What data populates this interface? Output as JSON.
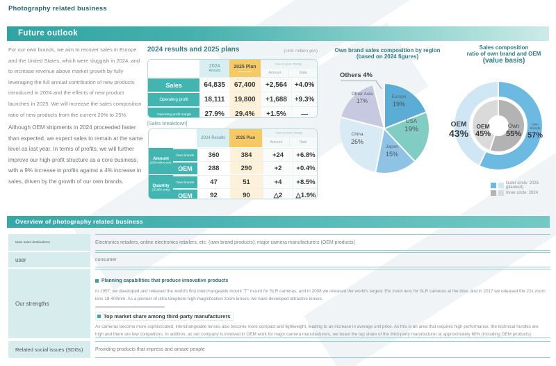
{
  "page_title": "Photography related business",
  "future_outlook": {
    "banner": "Future outlook",
    "para1": "For our own brands, we aim to recover sales in Europe and the United States, which were sluggish in 2024, and to increase revenue above market growth by fully leveraging the full annual contribution of new products introduced in 2024 and the effects of new product launches in 2025. We will increase the sales composition ratio of new products from the current 20% to 25%.",
    "para2": "Although OEM shipments in 2024 proceeded faster than expected, we expect sales to remain at the same level as last year. In terms of profits, we will further improve our high-profit structure as a core business, with a 9% increase in profits against a 4% increase in sales, driven by the growth of our own brands."
  },
  "results": {
    "title": "2024 results and 2025 plans",
    "unit_note": "(Unit: million yen)",
    "head": {
      "c2024": "2024",
      "c2024_sub": "Results",
      "c2025": "2025 Plan",
      "change": "Year-on-year change",
      "amount": "Amount",
      "rate": "Rate"
    },
    "rows": [
      {
        "label": "Sales",
        "v2024": "64,835",
        "v2025": "67,400",
        "amount": "+2,564",
        "rate": "+4.0%"
      },
      {
        "label": "Operating profit",
        "v2024": "18,111",
        "v2025": "19,800",
        "amount": "+1,688",
        "rate": "+9.3%"
      },
      {
        "label": "Operating profit margin",
        "v2024": "27.9%",
        "v2025": "29.4%",
        "amount": "+1.5%",
        "rate": "—"
      }
    ]
  },
  "breakdown": {
    "title": "[Sales breakdown]",
    "head": {
      "c2024": "2024 Results",
      "c2025": "2025 Plan",
      "change": "Year-on-year change",
      "amount": "Amount",
      "rate": "Rate"
    },
    "groups": [
      {
        "label": "Amount",
        "unit": "(100 million yen)",
        "rows": [
          {
            "name": "Own brands",
            "v2024": "360",
            "v2025": "384",
            "amount": "+24",
            "rate": "+6.8%"
          },
          {
            "name": "OEM",
            "v2024": "288",
            "v2025": "290",
            "amount": "+2",
            "rate": "+0.4%"
          }
        ]
      },
      {
        "label": "Quantity",
        "unit": "(10,000 units)",
        "rows": [
          {
            "name": "Own brands",
            "v2024": "47",
            "v2025": "51",
            "amount": "+4",
            "rate": "+8.5%"
          },
          {
            "name": "OEM",
            "v2024": "92",
            "v2025": "90",
            "amount": "△2",
            "rate": "△1.9%"
          }
        ]
      }
    ]
  },
  "region_chart": {
    "title_line1": "Own brand sales composition by region",
    "title_line2": "(based on 2024 figures)"
  },
  "composition_chart": {
    "title_line1": "Sales composition",
    "title_line2": "ratio of own brand and OEM",
    "title_line3": "(value basis)"
  },
  "overview": {
    "banner": "Overview of photography related business",
    "rows": [
      {
        "label": "Main sales destinations",
        "content": "Electronics retailers, online electronics retailers, etc. (own brand products), major camera manufacturers (OEM products)"
      },
      {
        "label": "user",
        "content": "consumer"
      }
    ],
    "strengths": {
      "label": "Our strengths",
      "items": [
        {
          "title": "Planning capabilities that produce innovative products",
          "body": "In 1957, we developed and released the world's first interchangeable mount \"T\" mount for SLR cameras, and in 2008 we released the world's largest 15x zoom lens for SLR cameras at the time, and in 2017 we released the 22x zoom lens 18-400mm. As a pioneer of ultra-telephoto high-magnification zoom lenses, we have developed attractive lenses."
        },
        {
          "title": "Top market share among third-party manufacturers",
          "body": "As cameras become more sophisticated, interchangeable lenses also become more compact and lightweight, leading to an increase in average unit price. As this is an area that requires high performance, the technical hurdles are high and there are few competitors. In addition, as our company is involved in OEM work for major camera manufacturers, we boast the top share of the third-party manufacturer at approximately 60% (including OEM products)."
        }
      ]
    },
    "sdgs": {
      "label": "Related social issues (SDGs)",
      "content": "Providing products that impress and amaze people"
    }
  },
  "chart_data": [
    {
      "type": "pie",
      "title": "Own brand sales composition by region (based on 2024 figures)",
      "unit": "%",
      "slices": [
        {
          "label": "Europe",
          "value": 19,
          "pct": "19%",
          "color": "#5badd6"
        },
        {
          "label": "USA",
          "value": 19,
          "pct": "19%",
          "color": "#82cdc3"
        },
        {
          "label": "Japan",
          "value": 15,
          "pct": "15%",
          "color": "#8fc3e6"
        },
        {
          "label": "China",
          "value": 26,
          "pct": "26%",
          "color": "#d8eaf3"
        },
        {
          "label": "Other Asia",
          "value": 17,
          "pct": "17%",
          "color": "#c6c9df"
        },
        {
          "label": "Others",
          "value": 4,
          "pct": "4%",
          "color": "#eef2f7"
        }
      ]
    },
    {
      "type": "pie",
      "title": "Sales composition ratio of own brand and OEM (value basis)",
      "unit": "%",
      "rings": [
        {
          "name": "Outer circle: 2025 (planned)",
          "segments": [
            {
              "label": "Own brands",
              "value": 57,
              "pct": "57%",
              "color": "#6cb9e2"
            },
            {
              "label": "OEM",
              "value": 43,
              "pct": "43%",
              "color": "#cfe6f5"
            }
          ]
        },
        {
          "name": "Inner circle: 2024",
          "segments": [
            {
              "label": "Own",
              "value": 55,
              "pct": "55%",
              "color": "#b3b3b3"
            },
            {
              "label": "OEM",
              "value": 45,
              "pct": "45%",
              "color": "#dadada"
            }
          ]
        }
      ]
    }
  ]
}
